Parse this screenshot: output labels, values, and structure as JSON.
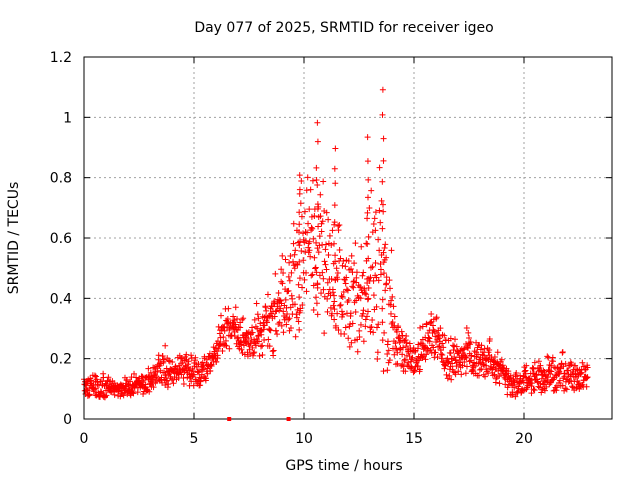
{
  "chart_data": {
    "type": "scatter",
    "title": "Day 077 of 2025, SRMTID for receiver igeo",
    "xlabel": "GPS time / hours",
    "ylabel": "SRMTID / TECUs",
    "xlim": [
      0,
      24
    ],
    "ylim": [
      0,
      1.2
    ],
    "xticks": [
      0,
      5,
      10,
      15,
      20
    ],
    "yticks": [
      0,
      0.2,
      0.4,
      0.6,
      0.8,
      1,
      1.2
    ],
    "ytick_labels": [
      "0",
      "0.2",
      "0.4",
      "0.6",
      "0.8",
      "1",
      "1.2"
    ],
    "xtick_labels": [
      "0",
      "5",
      "10",
      "15",
      "20"
    ],
    "grid": true,
    "marker": "+",
    "color": "#ff0000",
    "x_range_of_data": [
      0,
      22.9
    ],
    "envelope": [
      {
        "x": 0.0,
        "base": 0.1,
        "spread": 0.06
      },
      {
        "x": 1.0,
        "base": 0.1,
        "spread": 0.06
      },
      {
        "x": 2.0,
        "base": 0.1,
        "spread": 0.05
      },
      {
        "x": 3.0,
        "base": 0.12,
        "spread": 0.06
      },
      {
        "x": 3.5,
        "base": 0.16,
        "spread": 0.1
      },
      {
        "x": 4.5,
        "base": 0.15,
        "spread": 0.08
      },
      {
        "x": 5.5,
        "base": 0.15,
        "spread": 0.07
      },
      {
        "x": 6.0,
        "base": 0.22,
        "spread": 0.08
      },
      {
        "x": 6.5,
        "base": 0.3,
        "spread": 0.12
      },
      {
        "x": 7.5,
        "base": 0.25,
        "spread": 0.1
      },
      {
        "x": 8.5,
        "base": 0.3,
        "spread": 0.18
      },
      {
        "x": 9.5,
        "base": 0.4,
        "spread": 0.3
      },
      {
        "x": 10.2,
        "base": 0.6,
        "spread": 0.4
      },
      {
        "x": 11.0,
        "base": 0.45,
        "spread": 0.35
      },
      {
        "x": 12.0,
        "base": 0.35,
        "spread": 0.25
      },
      {
        "x": 12.8,
        "base": 0.4,
        "spread": 0.35
      },
      {
        "x": 13.5,
        "base": 0.45,
        "spread": 0.55
      },
      {
        "x": 14.2,
        "base": 0.25,
        "spread": 0.15
      },
      {
        "x": 15.0,
        "base": 0.18,
        "spread": 0.08
      },
      {
        "x": 15.8,
        "base": 0.28,
        "spread": 0.15
      },
      {
        "x": 16.5,
        "base": 0.18,
        "spread": 0.1
      },
      {
        "x": 17.5,
        "base": 0.2,
        "spread": 0.12
      },
      {
        "x": 18.5,
        "base": 0.18,
        "spread": 0.1
      },
      {
        "x": 19.5,
        "base": 0.1,
        "spread": 0.07
      },
      {
        "x": 20.5,
        "base": 0.13,
        "spread": 0.08
      },
      {
        "x": 22.0,
        "base": 0.14,
        "spread": 0.1
      },
      {
        "x": 22.9,
        "base": 0.13,
        "spread": 0.06
      }
    ],
    "peaks": [
      {
        "x": 10.6,
        "y": 0.99
      },
      {
        "x": 11.4,
        "y": 0.91
      },
      {
        "x": 12.9,
        "y": 0.94
      },
      {
        "x": 13.6,
        "y": 1.1
      },
      {
        "x": 9.8,
        "y": 0.82
      }
    ],
    "gap_markers_x": [
      6.6,
      9.3
    ]
  }
}
